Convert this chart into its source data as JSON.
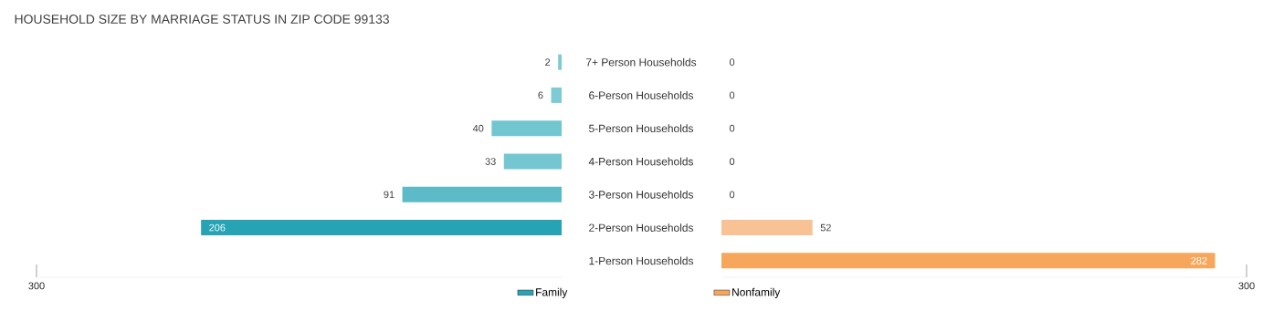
{
  "chart_data": [
    {
      "type": "bar",
      "orientation": "horizontal",
      "title": "HOUSEHOLD SIZE BY MARRIAGE STATUS IN ZIP CODE 99133",
      "categories": [
        "7+ Person Households",
        "6-Person Households",
        "5-Person Households",
        "4-Person Households",
        "3-Person Households",
        "2-Person Households",
        "1-Person Households"
      ],
      "series": [
        {
          "name": "Family",
          "color": "#2aa3b3",
          "colors": [
            "#7ecbd4",
            "#7ecbd4",
            "#72c6d0",
            "#74c7d1",
            "#5dbbc7",
            "#27a4b4",
            "#7ecbd4"
          ],
          "values": [
            2,
            6,
            40,
            33,
            91,
            206,
            null
          ]
        }
      ],
      "xlim": [
        300,
        0
      ],
      "xticks": [
        300
      ],
      "data_labels": true,
      "legend": "bottom right"
    },
    {
      "type": "bar",
      "orientation": "horizontal",
      "categories": [
        null,
        null,
        null,
        null,
        null,
        null,
        null
      ],
      "series": [
        {
          "name": "Nonfamily",
          "color": "#f6a55d",
          "colors": [
            "#f9c9a2",
            "#f9c9a2",
            "#f9c9a2",
            "#f9c9a2",
            "#f9c9a2",
            "#f8c295",
            "#f7a75b"
          ],
          "values": [
            0,
            0,
            0,
            0,
            0,
            52,
            282
          ]
        }
      ],
      "xlim": [
        0,
        300
      ],
      "xticks": [
        300
      ],
      "data_labels": true,
      "legend": "bottom left"
    }
  ]
}
